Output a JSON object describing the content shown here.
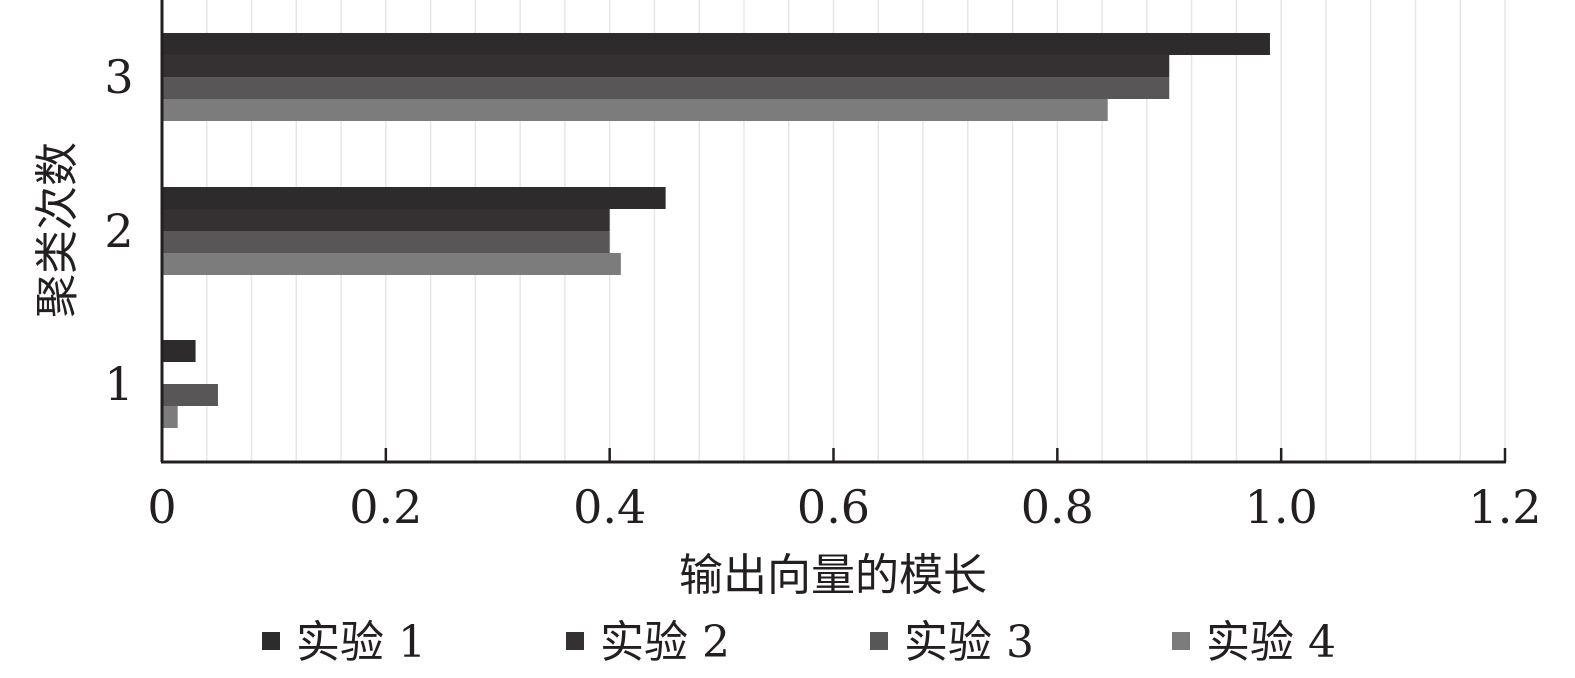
{
  "chart_data": {
    "type": "bar",
    "orientation": "horizontal",
    "categories": [
      "1",
      "2",
      "3"
    ],
    "series": [
      {
        "name": "实验 1",
        "values": [
          0.03,
          0.45,
          0.99
        ]
      },
      {
        "name": "实验 2",
        "values": [
          0.0,
          0.4,
          0.9
        ]
      },
      {
        "name": "实验 3",
        "values": [
          0.05,
          0.4,
          0.9
        ]
      },
      {
        "name": "实验 4",
        "values": [
          0.014,
          0.41,
          0.845
        ]
      }
    ],
    "xlabel": "输出向量的模长",
    "ylabel": "聚类次数",
    "xlim": [
      0,
      1.2
    ],
    "x_ticks": [
      "0",
      "0.2",
      "0.4",
      "0.6",
      "0.8",
      "1.0",
      "1.2"
    ],
    "x_tick_values": [
      0,
      0.2,
      0.4,
      0.6,
      0.8,
      1.0,
      1.2
    ],
    "grid": true,
    "legend_position": "bottom"
  },
  "colors": {
    "series": [
      "#2e2b2c",
      "#353132",
      "#585657",
      "#7d7c7c"
    ],
    "axis": "#231f20",
    "grid": "#e6e6e6"
  }
}
